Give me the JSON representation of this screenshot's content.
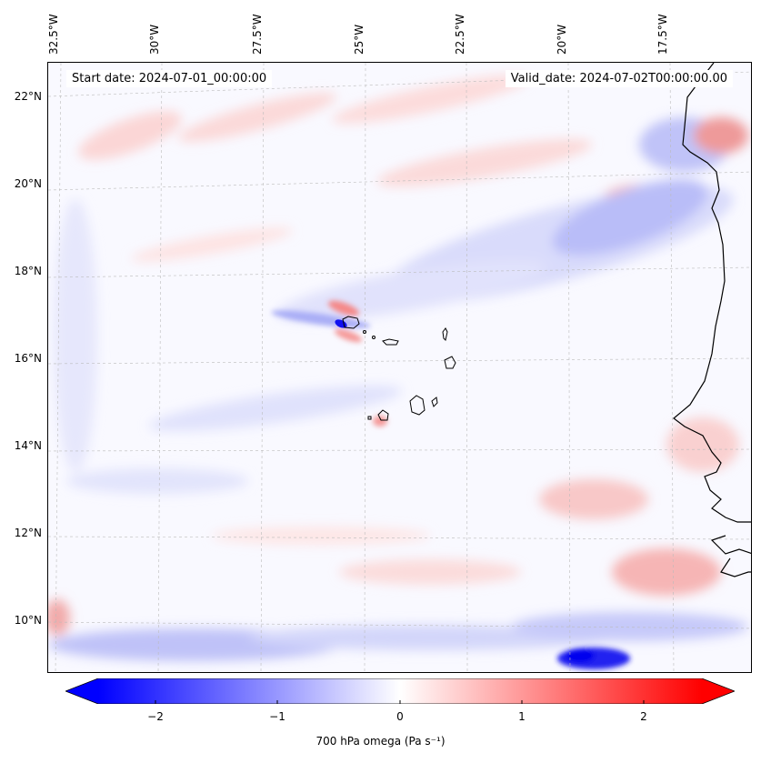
{
  "map": {
    "start_date": "Start date: 2024-07-01_00:00:00",
    "valid_date": "Valid_date: 2024-07-02T00:00:00.00",
    "lon_labels": [
      "32.5°W",
      "30°W",
      "27.5°W",
      "25°W",
      "22.5°W",
      "20°W",
      "17.5°W"
    ],
    "lat_labels": [
      "22°N",
      "20°N",
      "18°N",
      "16°N",
      "14°N",
      "12°N",
      "10°N"
    ],
    "colormap": "bwr",
    "coastline_color": "#000000",
    "gridline_color": "#bbbbbb"
  },
  "colorbar": {
    "label": "700 hPa omega (Pa s⁻¹)",
    "ticks": [
      "−2",
      "−1",
      "0",
      "1",
      "2"
    ],
    "range": [
      -2.75,
      2.75
    ],
    "min_color": "#0000ff",
    "max_color": "#ff0000",
    "extend": "both"
  }
}
